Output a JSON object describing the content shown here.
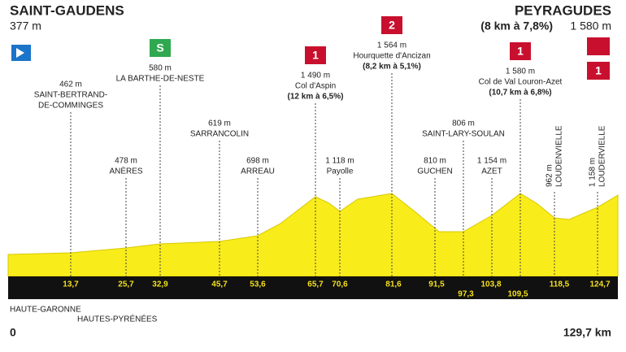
{
  "start": {
    "name": "SAINT-GAUDENS",
    "altitude": "377 m",
    "km": "0"
  },
  "finish": {
    "name": "PEYRAGUDES",
    "climb": "(8 km à 7,8%)",
    "altitude": "1 580 m",
    "km": "129,7 km",
    "category": "1"
  },
  "waypoints": [
    {
      "altitude": "462 m",
      "name": [
        "SAINT-BERTRAND-",
        "DE-COMMINGES"
      ]
    },
    {
      "altitude": "478 m",
      "name": [
        "ANÈRES"
      ]
    },
    {
      "altitude": "580 m",
      "name": [
        "LA BARTHE-DE-NESTE"
      ],
      "sprint": "S"
    },
    {
      "altitude": "619 m",
      "name": [
        "SARRANCOLIN"
      ]
    },
    {
      "altitude": "698 m",
      "name": [
        "ARREAU"
      ]
    },
    {
      "altitude": "1 490 m",
      "name": [
        "Col d'Aspin"
      ],
      "climb": "(12 km à 6,5%)",
      "category": "1"
    },
    {
      "altitude": "1 118 m",
      "name": [
        "Payolle"
      ]
    },
    {
      "altitude": "1 564 m",
      "name": [
        "Hourquette d'Ancizan"
      ],
      "climb": "(8,2 km à 5,1%)",
      "category": "2"
    },
    {
      "altitude": "810 m",
      "name": [
        "GUCHEN"
      ]
    },
    {
      "altitude": "806 m",
      "name": [
        "SAINT-LARY-SOULAN"
      ]
    },
    {
      "altitude": "1 154 m",
      "name": [
        "AZET"
      ]
    },
    {
      "altitude": "1 580 m",
      "name": [
        "Col de Val Louron-Azet"
      ],
      "climb": "(10,7 km à 6,8%)",
      "category": "1"
    },
    {
      "altitude": "962 m",
      "name": [
        "LOUDENVIELLE"
      ]
    },
    {
      "altitude": "1 158 m",
      "name": [
        "LOUDERVIELLE"
      ]
    }
  ],
  "km_marks": [
    "13,7",
    "25,7",
    "32,9",
    "45,7",
    "53,6",
    "65,7",
    "70,6",
    "81,6",
    "91,5",
    "97,3",
    "103,8",
    "109,5",
    "118,5",
    "124,7"
  ],
  "regions": [
    "HAUTE-GARONNE",
    "HAUTES-PYRÉNÉES"
  ]
}
